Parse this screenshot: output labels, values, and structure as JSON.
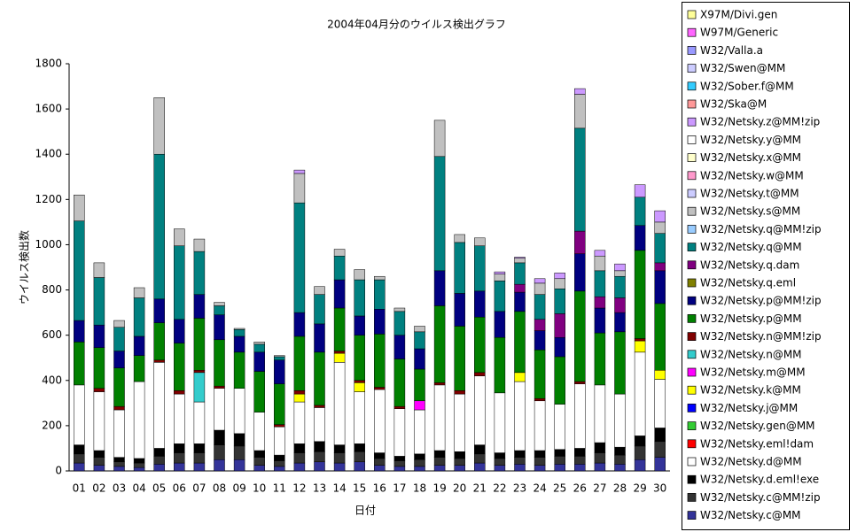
{
  "chart_data": {
    "type": "stacked_bar",
    "title": "2004年04月分のウイルス検出グラフ",
    "x_label": "日付",
    "y_label": "ウイルス検出数",
    "categories": [
      "01",
      "02",
      "03",
      "04",
      "05",
      "06",
      "07",
      "08",
      "09",
      "10",
      "11",
      "12",
      "13",
      "14",
      "15",
      "16",
      "17",
      "18",
      "19",
      "20",
      "21",
      "22",
      "23",
      "24",
      "25",
      "26",
      "27",
      "28",
      "29",
      "30"
    ],
    "ylim": [
      0,
      1800
    ],
    "yticks": [
      0,
      200,
      400,
      600,
      800,
      1000,
      1200,
      1400,
      1600,
      1800
    ],
    "series": [
      {
        "name": "W32/Netsky.c@MM",
        "color": "#333399",
        "values": [
          35,
          25,
          20,
          15,
          30,
          35,
          35,
          50,
          50,
          25,
          20,
          35,
          40,
          35,
          40,
          25,
          20,
          20,
          25,
          25,
          35,
          25,
          30,
          25,
          30,
          30,
          35,
          30,
          50,
          60
        ]
      },
      {
        "name": "W32/Netsky.c@MM!zip",
        "color": "#333333",
        "values": [
          40,
          35,
          20,
          20,
          35,
          45,
          45,
          65,
          60,
          35,
          25,
          45,
          45,
          45,
          45,
          30,
          25,
          30,
          35,
          30,
          40,
          30,
          30,
          35,
          35,
          35,
          45,
          40,
          60,
          70
        ]
      },
      {
        "name": "W32/Netsky.d.eml!exe",
        "color": "#000000",
        "values": [
          40,
          30,
          20,
          20,
          35,
          40,
          40,
          65,
          55,
          30,
          25,
          40,
          45,
          35,
          35,
          25,
          20,
          25,
          30,
          30,
          40,
          25,
          30,
          30,
          30,
          35,
          45,
          35,
          45,
          60
        ]
      },
      {
        "name": "W32/Netsky.d@MM",
        "color": "#ffffff",
        "values": [
          265,
          260,
          210,
          340,
          380,
          220,
          185,
          185,
          200,
          170,
          125,
          185,
          150,
          365,
          230,
          280,
          210,
          195,
          290,
          255,
          305,
          265,
          305,
          220,
          200,
          285,
          255,
          235,
          370,
          215
        ]
      },
      {
        "name": "W32/Netsky.eml!dam",
        "color": "#ff0000",
        "values": [
          0,
          0,
          0,
          0,
          0,
          0,
          0,
          0,
          0,
          0,
          0,
          0,
          0,
          0,
          0,
          0,
          0,
          0,
          0,
          0,
          0,
          0,
          0,
          0,
          0,
          0,
          0,
          0,
          0,
          0
        ]
      },
      {
        "name": "W32/Netsky.gen@MM",
        "color": "#33cc33",
        "values": [
          0,
          0,
          0,
          0,
          0,
          0,
          0,
          0,
          0,
          0,
          0,
          0,
          0,
          0,
          0,
          0,
          0,
          0,
          0,
          0,
          0,
          0,
          0,
          0,
          0,
          0,
          0,
          0,
          0,
          0
        ]
      },
      {
        "name": "W32/Netsky.j@MM",
        "color": "#0000ff",
        "values": [
          0,
          0,
          0,
          0,
          0,
          0,
          0,
          0,
          0,
          0,
          0,
          0,
          0,
          0,
          0,
          0,
          0,
          0,
          0,
          0,
          0,
          0,
          0,
          0,
          0,
          0,
          0,
          0,
          0,
          0
        ]
      },
      {
        "name": "W32/Netsky.k@MM",
        "color": "#ffff00",
        "values": [
          0,
          0,
          0,
          0,
          0,
          0,
          0,
          0,
          0,
          0,
          0,
          35,
          0,
          40,
          40,
          0,
          0,
          0,
          0,
          0,
          0,
          0,
          40,
          0,
          0,
          0,
          0,
          0,
          50,
          40
        ]
      },
      {
        "name": "W32/Netsky.m@MM",
        "color": "#ff00ff",
        "values": [
          0,
          0,
          0,
          0,
          0,
          0,
          0,
          0,
          0,
          0,
          0,
          0,
          0,
          0,
          0,
          0,
          0,
          40,
          0,
          0,
          0,
          0,
          0,
          0,
          0,
          0,
          0,
          0,
          0,
          0
        ]
      },
      {
        "name": "W32/Netsky.n@MM",
        "color": "#33cccc",
        "values": [
          0,
          0,
          0,
          0,
          0,
          0,
          130,
          0,
          0,
          0,
          0,
          0,
          0,
          0,
          0,
          0,
          0,
          0,
          0,
          0,
          0,
          0,
          0,
          0,
          0,
          0,
          0,
          0,
          0,
          0
        ]
      },
      {
        "name": "W32/Netsky.n@MM!zip",
        "color": "#800000",
        "values": [
          0,
          15,
          15,
          0,
          10,
          15,
          10,
          10,
          0,
          0,
          10,
          15,
          10,
          10,
          10,
          10,
          10,
          0,
          10,
          15,
          15,
          0,
          0,
          10,
          0,
          10,
          0,
          0,
          10,
          0
        ]
      },
      {
        "name": "W32/Netsky.p@MM",
        "color": "#008000",
        "values": [
          190,
          180,
          170,
          115,
          165,
          210,
          230,
          205,
          160,
          180,
          180,
          240,
          235,
          190,
          200,
          235,
          210,
          140,
          340,
          285,
          245,
          245,
          270,
          215,
          210,
          400,
          230,
          275,
          390,
          295
        ]
      },
      {
        "name": "W32/Netsky.p@MM!zip",
        "color": "#000080",
        "values": [
          95,
          100,
          75,
          85,
          105,
          105,
          105,
          110,
          70,
          85,
          105,
          105,
          125,
          125,
          85,
          110,
          105,
          90,
          155,
          145,
          115,
          115,
          85,
          85,
          85,
          165,
          110,
          85,
          110,
          145
        ]
      },
      {
        "name": "W32/Netsky.q.eml",
        "color": "#808000",
        "values": [
          0,
          0,
          0,
          0,
          0,
          0,
          0,
          0,
          0,
          0,
          0,
          0,
          0,
          0,
          0,
          0,
          0,
          0,
          0,
          0,
          0,
          0,
          0,
          0,
          0,
          0,
          0,
          0,
          0,
          0
        ]
      },
      {
        "name": "W32/Netsky.q.dam",
        "color": "#800080",
        "values": [
          0,
          0,
          0,
          0,
          0,
          0,
          0,
          0,
          0,
          0,
          0,
          0,
          0,
          0,
          0,
          0,
          0,
          0,
          0,
          0,
          0,
          0,
          35,
          50,
          105,
          100,
          50,
          65,
          0,
          35
        ]
      },
      {
        "name": "W32/Netsky.q@MM",
        "color": "#008080",
        "values": [
          440,
          210,
          105,
          170,
          640,
          325,
          190,
          40,
          30,
          35,
          15,
          485,
          130,
          105,
          160,
          130,
          105,
          75,
          505,
          225,
          200,
          135,
          95,
          110,
          110,
          455,
          115,
          95,
          125,
          130
        ]
      },
      {
        "name": "W32/Netsky.q@MM!zip",
        "color": "#99ccff",
        "values": [
          0,
          0,
          0,
          0,
          0,
          0,
          0,
          0,
          0,
          0,
          0,
          0,
          0,
          0,
          0,
          0,
          0,
          0,
          0,
          0,
          0,
          0,
          0,
          0,
          0,
          0,
          0,
          0,
          0,
          0
        ]
      },
      {
        "name": "W32/Netsky.s@MM",
        "color": "#c0c0c0",
        "values": [
          115,
          65,
          30,
          45,
          250,
          75,
          55,
          15,
          5,
          10,
          5,
          130,
          35,
          30,
          45,
          15,
          15,
          25,
          160,
          35,
          35,
          30,
          20,
          50,
          45,
          150,
          65,
          25,
          0,
          50
        ]
      },
      {
        "name": "W32/Netsky.t@MM",
        "color": "#ccccff",
        "values": [
          0,
          0,
          0,
          0,
          0,
          0,
          0,
          0,
          0,
          0,
          0,
          0,
          0,
          0,
          0,
          0,
          0,
          0,
          0,
          0,
          0,
          0,
          0,
          0,
          0,
          0,
          0,
          0,
          0,
          0
        ]
      },
      {
        "name": "W32/Netsky.w@MM",
        "color": "#ff99cc",
        "values": [
          0,
          0,
          0,
          0,
          0,
          0,
          0,
          0,
          0,
          0,
          0,
          0,
          0,
          0,
          0,
          0,
          0,
          0,
          0,
          0,
          0,
          0,
          0,
          0,
          0,
          0,
          0,
          0,
          0,
          0
        ]
      },
      {
        "name": "W32/Netsky.x@MM",
        "color": "#ffffcc",
        "values": [
          0,
          0,
          0,
          0,
          0,
          0,
          0,
          0,
          0,
          0,
          0,
          0,
          0,
          0,
          0,
          0,
          0,
          0,
          0,
          0,
          0,
          0,
          0,
          0,
          0,
          0,
          0,
          0,
          0,
          0
        ]
      },
      {
        "name": "W32/Netsky.y@MM",
        "color": "#ffffff",
        "values": [
          0,
          0,
          0,
          0,
          0,
          0,
          0,
          0,
          0,
          0,
          0,
          0,
          0,
          0,
          0,
          0,
          0,
          0,
          0,
          0,
          0,
          0,
          0,
          0,
          0,
          0,
          0,
          0,
          0,
          0
        ]
      },
      {
        "name": "W32/Netsky.z@MM!zip",
        "color": "#cc99ff",
        "values": [
          0,
          0,
          0,
          0,
          0,
          0,
          0,
          0,
          0,
          0,
          0,
          15,
          0,
          0,
          0,
          0,
          0,
          0,
          0,
          0,
          0,
          10,
          5,
          20,
          25,
          25,
          25,
          30,
          55,
          50
        ]
      },
      {
        "name": "W32/Ska@M",
        "color": "#ff9999",
        "values": [
          0,
          0,
          0,
          0,
          0,
          0,
          0,
          0,
          0,
          0,
          0,
          0,
          0,
          0,
          0,
          0,
          0,
          0,
          0,
          0,
          0,
          0,
          0,
          0,
          0,
          0,
          0,
          0,
          0,
          0
        ]
      },
      {
        "name": "W32/Sober.f@MM",
        "color": "#33ccff",
        "values": [
          0,
          0,
          0,
          0,
          0,
          0,
          0,
          0,
          0,
          0,
          0,
          0,
          0,
          0,
          0,
          0,
          0,
          0,
          0,
          0,
          0,
          0,
          0,
          0,
          0,
          0,
          0,
          0,
          0,
          0
        ]
      },
      {
        "name": "W32/Swen@MM",
        "color": "#ccccff",
        "values": [
          0,
          0,
          0,
          0,
          0,
          0,
          0,
          0,
          0,
          0,
          0,
          0,
          0,
          0,
          0,
          0,
          0,
          0,
          0,
          0,
          0,
          0,
          0,
          0,
          0,
          0,
          0,
          0,
          0,
          0
        ]
      },
      {
        "name": "W32/Valla.a",
        "color": "#9999ff",
        "values": [
          0,
          0,
          0,
          0,
          0,
          0,
          0,
          0,
          0,
          0,
          0,
          0,
          0,
          0,
          0,
          0,
          0,
          0,
          0,
          0,
          0,
          0,
          0,
          0,
          0,
          0,
          0,
          0,
          0,
          0
        ]
      },
      {
        "name": "W97M/Generic",
        "color": "#ff66ff",
        "values": [
          0,
          0,
          0,
          0,
          0,
          0,
          0,
          0,
          0,
          0,
          0,
          0,
          0,
          0,
          0,
          0,
          0,
          0,
          0,
          0,
          0,
          0,
          0,
          0,
          0,
          0,
          0,
          0,
          0,
          0
        ]
      },
      {
        "name": "X97M/Divi.gen",
        "color": "#ffff99",
        "values": [
          0,
          0,
          0,
          0,
          0,
          0,
          0,
          0,
          0,
          0,
          0,
          0,
          0,
          0,
          0,
          0,
          0,
          0,
          0,
          0,
          0,
          0,
          0,
          0,
          0,
          0,
          0,
          0,
          0,
          0
        ]
      }
    ]
  }
}
